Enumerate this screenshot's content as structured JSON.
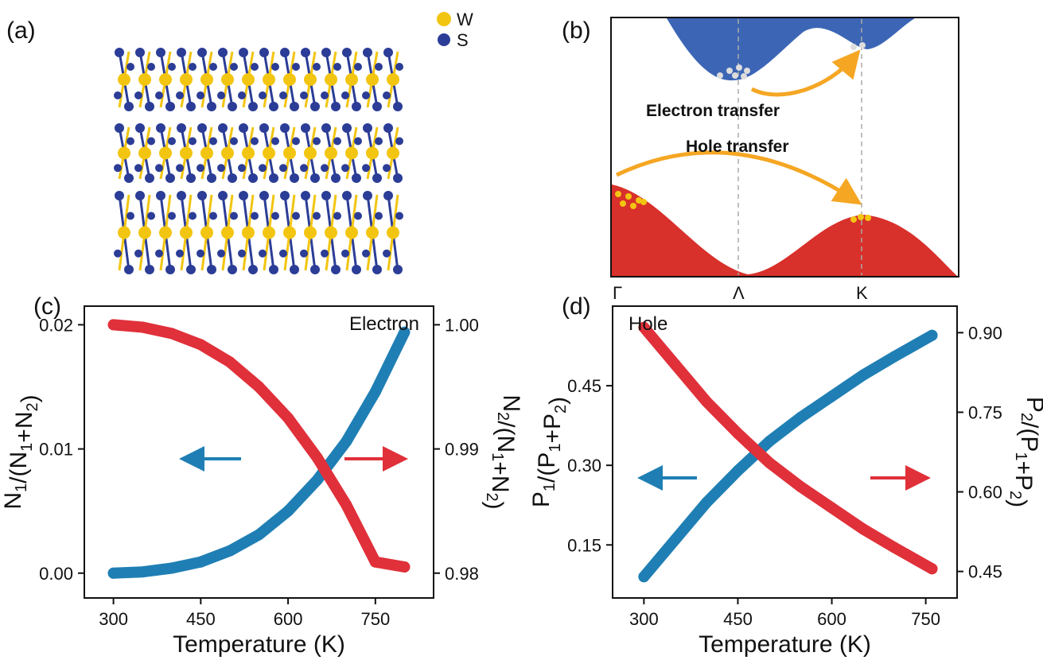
{
  "panels": {
    "a": {
      "label": "(a)",
      "legend": [
        {
          "text": "W",
          "color": "#f2c511"
        },
        {
          "text": "S",
          "color": "#2b3d96"
        }
      ]
    },
    "b": {
      "label": "(b)",
      "electron_text": "Electron transfer",
      "hole_text": "Hole transfer",
      "kpoints": [
        "Γ",
        "Λ",
        "K"
      ],
      "conduction_color": "#3c66b5",
      "valence_color": "#d8302b",
      "arrow_color": "#f5a623"
    },
    "c": {
      "label": "(c)"
    },
    "d": {
      "label": "(d)"
    }
  },
  "chart_data": [
    {
      "panel": "(c)",
      "type": "scatter",
      "annotation": "Electron",
      "xlabel": "Temperature (K)",
      "xlim": [
        250,
        850
      ],
      "xticks": [
        300,
        450,
        600,
        750
      ],
      "ylabel_left": {
        "main": "N",
        "sub1": "1",
        "mid": "/(N",
        "sub2": "1",
        "plus": "+N",
        "sub3": "2",
        "end": ")"
      },
      "ylabel_right": {
        "main": "N",
        "sub1": "2",
        "mid": "/(N",
        "sub2": "1",
        "plus": "+N",
        "sub3": "2",
        "end": ")"
      },
      "ylim_left": [
        -0.002,
        0.0215
      ],
      "yticks_left": [
        "0.00",
        "0.01",
        "0.02"
      ],
      "ylim_right": [
        0.978,
        1.0015
      ],
      "yticks_right": [
        "0.98",
        "0.99",
        "1.00"
      ],
      "series": [
        {
          "axis": "left",
          "color": "#1f7fb4",
          "x": [
            300,
            350,
            400,
            450,
            500,
            550,
            600,
            650,
            700,
            750,
            800
          ],
          "y": [
            0.0,
            0.0001,
            0.0004,
            0.0009,
            0.0018,
            0.0031,
            0.005,
            0.0075,
            0.0106,
            0.0146,
            0.0194
          ]
        },
        {
          "axis": "right",
          "color": "#e0303a",
          "x": [
            300,
            350,
            400,
            450,
            500,
            550,
            600,
            650,
            700,
            750,
            800
          ],
          "y": [
            1.0,
            0.9998,
            0.9993,
            0.9984,
            0.997,
            0.995,
            0.9925,
            0.9893,
            0.9855,
            0.9809,
            0.9805
          ]
        }
      ]
    },
    {
      "panel": "(d)",
      "type": "scatter",
      "annotation": "Hole",
      "xlabel": "Temperature (K)",
      "xlim": [
        250,
        800
      ],
      "xticks": [
        300,
        450,
        600,
        750
      ],
      "ylabel_left": {
        "main": "P",
        "sub1": "1",
        "mid": "/(P",
        "sub2": "1",
        "plus": "+P",
        "sub3": "2",
        "end": ")"
      },
      "ylabel_right": {
        "main": "P",
        "sub1": "2",
        "mid": "/(P",
        "sub2": "1",
        "plus": "+P",
        "sub3": "2",
        "end": ")"
      },
      "ylim_left": [
        0.05,
        0.6
      ],
      "yticks_left": [
        "0.15",
        "0.30",
        "0.45"
      ],
      "ylim_right": [
        0.4,
        0.95
      ],
      "yticks_right": [
        "0.45",
        "0.60",
        "0.75",
        "0.90"
      ],
      "series": [
        {
          "axis": "left",
          "color": "#1f7fb4",
          "x": [
            300,
            350,
            400,
            450,
            500,
            550,
            600,
            650,
            700,
            760
          ],
          "y": [
            0.09,
            0.16,
            0.23,
            0.29,
            0.345,
            0.39,
            0.43,
            0.47,
            0.505,
            0.545
          ]
        },
        {
          "axis": "right",
          "color": "#e0303a",
          "x": [
            300,
            350,
            400,
            450,
            500,
            550,
            600,
            650,
            700,
            760
          ],
          "y": [
            0.91,
            0.84,
            0.77,
            0.71,
            0.655,
            0.61,
            0.57,
            0.53,
            0.495,
            0.455
          ]
        }
      ]
    }
  ]
}
